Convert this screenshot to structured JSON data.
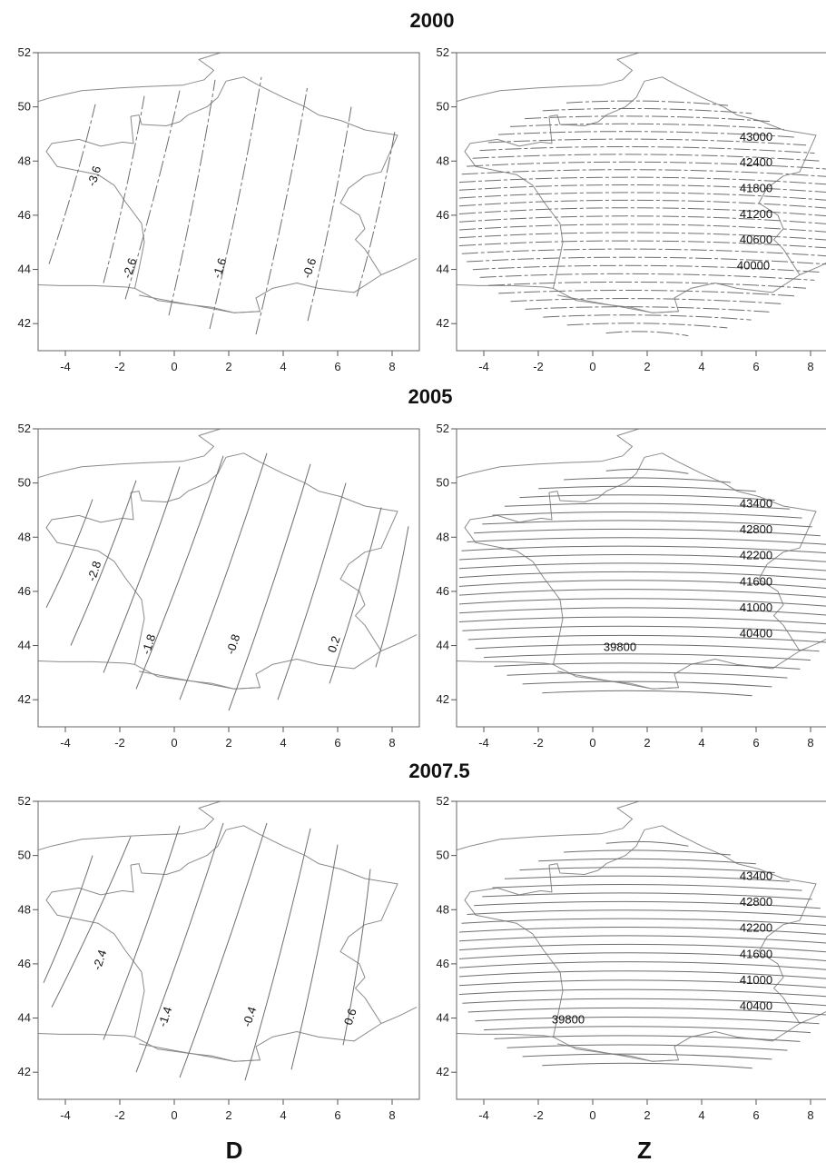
{
  "figure": {
    "columns": [
      {
        "key": "D",
        "label": "D"
      },
      {
        "key": "Z",
        "label": "Z"
      }
    ],
    "x_ticks": [
      "-4",
      "-2",
      "0",
      "2",
      "4",
      "6",
      "8"
    ],
    "y_ticks": [
      "42",
      "44",
      "46",
      "48",
      "50",
      "52"
    ],
    "rows": [
      {
        "title": "2000",
        "D": {
          "labels": [
            "-3.6",
            "-2.6",
            "-1.6",
            "-0.6"
          ]
        },
        "Z": {
          "labels": [
            "43000",
            "42400",
            "41800",
            "41200",
            "40600",
            "40000"
          ]
        }
      },
      {
        "title": "2005",
        "D": {
          "labels": [
            "-2.8",
            "-1.8",
            "-0.8",
            "0.2"
          ]
        },
        "Z": {
          "labels": [
            "43400",
            "42800",
            "42200",
            "41600",
            "41000",
            "40400",
            "39800"
          ]
        }
      },
      {
        "title": "2007.5",
        "D": {
          "labels": [
            "-2.4",
            "-1.4",
            "-0.4",
            "0.6"
          ]
        },
        "Z": {
          "labels": [
            "43400",
            "42800",
            "42200",
            "41600",
            "41000",
            "40400",
            "39800"
          ]
        }
      }
    ]
  },
  "chart_data": {
    "type": "contour-map",
    "x_range": [
      -5,
      9
    ],
    "y_range": [
      41,
      52
    ],
    "panels": [
      {
        "year": "2000",
        "variable": "D",
        "contour_levels": [
          -3.6,
          -2.6,
          -1.6,
          -0.6
        ]
      },
      {
        "year": "2000",
        "variable": "Z",
        "contour_levels": [
          43000,
          42400,
          41800,
          41200,
          40600,
          40000
        ]
      },
      {
        "year": "2005",
        "variable": "D",
        "contour_levels": [
          -2.8,
          -1.8,
          -0.8,
          0.2
        ]
      },
      {
        "year": "2005",
        "variable": "Z",
        "contour_levels": [
          43400,
          42800,
          42200,
          41600,
          41000,
          40400,
          39800
        ]
      },
      {
        "year": "2007.5",
        "variable": "D",
        "contour_levels": [
          -2.4,
          -1.4,
          -0.4,
          0.6
        ]
      },
      {
        "year": "2007.5",
        "variable": "Z",
        "contour_levels": [
          43400,
          42800,
          42200,
          41600,
          41000,
          40400,
          39800
        ]
      }
    ]
  }
}
